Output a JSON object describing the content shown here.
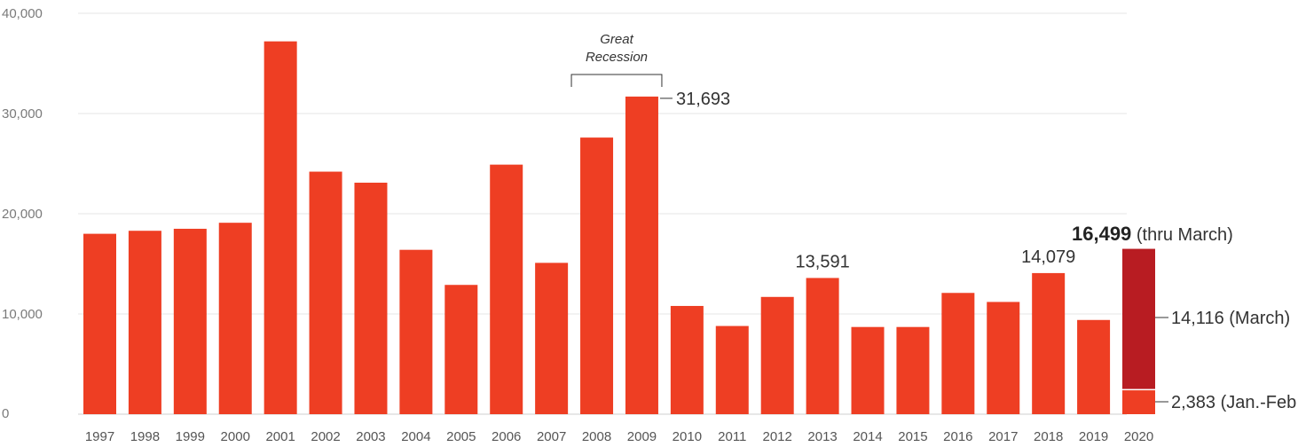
{
  "chart_data": {
    "type": "bar",
    "title": "",
    "xlabel": "",
    "ylabel": "",
    "ylim": [
      0,
      40000
    ],
    "yticks": [
      0,
      10000,
      20000,
      30000,
      40000
    ],
    "ytick_labels": [
      "0",
      "10,000",
      "20,000",
      "30,000",
      "40,000"
    ],
    "grid": true,
    "categories": [
      "1997",
      "1998",
      "1999",
      "2000",
      "2001",
      "2002",
      "2003",
      "2004",
      "2005",
      "2006",
      "2007",
      "2008",
      "2009",
      "2010",
      "2011",
      "2012",
      "2013",
      "2014",
      "2015",
      "2016",
      "2017",
      "2018",
      "2019",
      "2020"
    ],
    "values": [
      18000,
      18300,
      18500,
      19100,
      37200,
      24200,
      23100,
      16400,
      12900,
      24900,
      15100,
      27600,
      31693,
      10800,
      8800,
      11700,
      13591,
      8700,
      8700,
      12100,
      11200,
      14079,
      9400,
      16499
    ],
    "stacked_2020": [
      {
        "name": "Jan.-Feb.",
        "value": 2383
      },
      {
        "name": "March",
        "value": 14116
      }
    ],
    "colors": {
      "bar": "#ee3e23",
      "march": "#b81c22",
      "grid": "#e6e6e6"
    },
    "data_labels": {
      "2009": "31,693",
      "2013": "13,591",
      "2018": "14,079"
    },
    "annotation": {
      "lines": [
        "Great",
        "Recession"
      ],
      "from": "2008",
      "to": "2009"
    },
    "labels_2020": {
      "total_value": "16,499",
      "total_suffix": "(thru March)",
      "march": "14,116 (March)",
      "janfeb": "2,383 (Jan.-Feb.)"
    }
  }
}
